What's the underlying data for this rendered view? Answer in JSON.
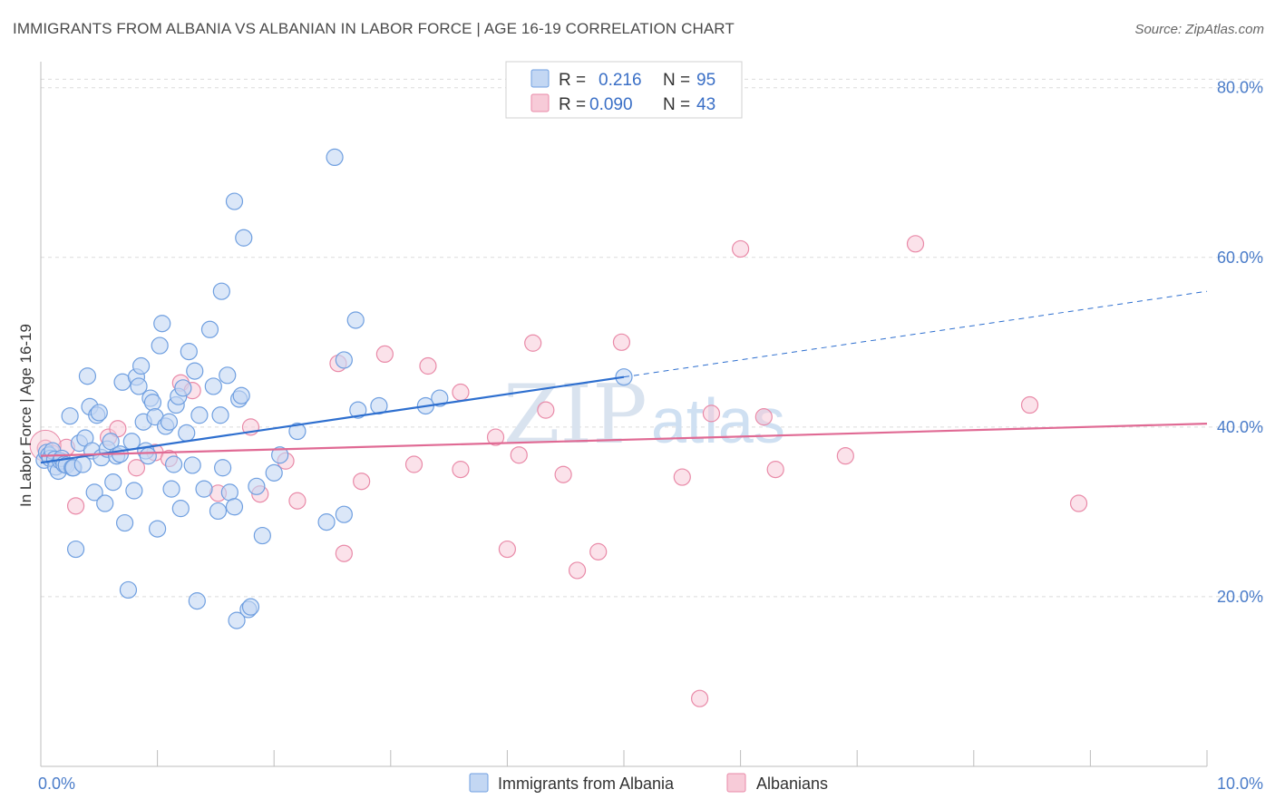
{
  "title": "IMMIGRANTS FROM ALBANIA VS ALBANIAN IN LABOR FORCE | AGE 16-19 CORRELATION CHART",
  "source": "Source: ZipAtlas.com",
  "watermark": {
    "zip": "ZIP",
    "atlas": "atlas"
  },
  "colors": {
    "blue": "#6f9fe0",
    "blue_fill": "#c3d7f3",
    "blue_line": "#2e6fcf",
    "pink": "#e98aa8",
    "pink_fill": "#f7cbd8",
    "pink_line": "#e06a94",
    "tick": "#4a7cc9"
  },
  "legend": {
    "rows": [
      {
        "r_label": "R = ",
        "r_value": "0.216",
        "n_label": "N = ",
        "n_value": "95"
      },
      {
        "r_label": "R = ",
        "r_value": "0.090",
        "n_label": "N = ",
        "n_value": "43"
      }
    ]
  },
  "bottom_legend": [
    "Immigrants from Albania",
    "Albanians"
  ],
  "chart_data": {
    "type": "scatter",
    "title": "IMMIGRANTS FROM ALBANIA VS ALBANIAN IN LABOR FORCE | AGE 16-19 CORRELATION CHART",
    "xlabel": "",
    "ylabel": "In Labor Force | Age 16-19",
    "xlim": [
      0,
      10
    ],
    "ylim": [
      0,
      82
    ],
    "x_tick_labels": [
      "0.0%",
      "10.0%"
    ],
    "y_ticks": [
      20,
      40,
      60,
      80
    ],
    "y_tick_labels": [
      "20.0%",
      "40.0%",
      "60.0%",
      "80.0%"
    ],
    "grid": true,
    "legend_position": "top-center",
    "series": [
      {
        "name": "Immigrants from Albania",
        "R": 0.216,
        "N": 95,
        "trend": {
          "x0": 0,
          "y0": 35.8,
          "x1": 5.0,
          "y1": 45.9,
          "dash_x1": 10.0,
          "dash_y1": 56.0
        },
        "points": [
          [
            0.03,
            36.1
          ],
          [
            0.05,
            37.0
          ],
          [
            0.07,
            36.7
          ],
          [
            0.08,
            36.3
          ],
          [
            0.1,
            37.2
          ],
          [
            0.12,
            36.2
          ],
          [
            0.13,
            35.3
          ],
          [
            0.15,
            34.8
          ],
          [
            0.17,
            36.0
          ],
          [
            0.18,
            36.3
          ],
          [
            0.2,
            35.6
          ],
          [
            0.22,
            35.5
          ],
          [
            0.25,
            41.3
          ],
          [
            0.27,
            35.2
          ],
          [
            0.28,
            35.2
          ],
          [
            0.3,
            25.6
          ],
          [
            0.33,
            38.1
          ],
          [
            0.36,
            35.6
          ],
          [
            0.38,
            38.7
          ],
          [
            0.4,
            46.0
          ],
          [
            0.42,
            42.4
          ],
          [
            0.44,
            37.2
          ],
          [
            0.46,
            32.3
          ],
          [
            0.48,
            41.4
          ],
          [
            0.5,
            41.7
          ],
          [
            0.52,
            36.4
          ],
          [
            0.55,
            31.0
          ],
          [
            0.57,
            37.4
          ],
          [
            0.6,
            38.3
          ],
          [
            0.62,
            33.5
          ],
          [
            0.65,
            36.6
          ],
          [
            0.68,
            36.8
          ],
          [
            0.7,
            45.3
          ],
          [
            0.72,
            28.7
          ],
          [
            0.75,
            20.8
          ],
          [
            0.78,
            38.3
          ],
          [
            0.8,
            32.5
          ],
          [
            0.82,
            45.9
          ],
          [
            0.84,
            44.8
          ],
          [
            0.86,
            47.2
          ],
          [
            0.88,
            40.6
          ],
          [
            0.9,
            37.2
          ],
          [
            0.92,
            36.6
          ],
          [
            0.94,
            43.4
          ],
          [
            0.96,
            42.9
          ],
          [
            0.98,
            41.2
          ],
          [
            1.0,
            28.0
          ],
          [
            1.02,
            49.6
          ],
          [
            1.04,
            52.2
          ],
          [
            1.07,
            40.1
          ],
          [
            1.1,
            40.6
          ],
          [
            1.12,
            32.7
          ],
          [
            1.14,
            35.6
          ],
          [
            1.16,
            42.6
          ],
          [
            1.18,
            43.6
          ],
          [
            1.2,
            30.4
          ],
          [
            1.22,
            44.6
          ],
          [
            1.25,
            39.3
          ],
          [
            1.27,
            48.9
          ],
          [
            1.3,
            35.5
          ],
          [
            1.32,
            46.6
          ],
          [
            1.34,
            19.5
          ],
          [
            1.36,
            41.4
          ],
          [
            1.4,
            32.7
          ],
          [
            1.45,
            51.5
          ],
          [
            1.48,
            44.8
          ],
          [
            1.52,
            30.1
          ],
          [
            1.54,
            41.4
          ],
          [
            1.56,
            35.2
          ],
          [
            1.6,
            46.1
          ],
          [
            1.62,
            32.3
          ],
          [
            1.66,
            30.6
          ],
          [
            1.7,
            43.3
          ],
          [
            1.72,
            43.7
          ],
          [
            1.78,
            18.5
          ],
          [
            1.8,
            18.8
          ],
          [
            1.85,
            33.0
          ],
          [
            1.9,
            27.2
          ],
          [
            2.0,
            34.6
          ],
          [
            2.05,
            36.7
          ],
          [
            2.2,
            39.5
          ],
          [
            2.45,
            28.8
          ],
          [
            2.6,
            47.9
          ],
          [
            2.7,
            52.6
          ],
          [
            2.72,
            42.0
          ],
          [
            2.9,
            42.5
          ],
          [
            3.3,
            42.5
          ],
          [
            3.42,
            43.4
          ],
          [
            5.0,
            45.9
          ],
          [
            1.55,
            56.0
          ],
          [
            2.52,
            71.8
          ],
          [
            1.66,
            66.6
          ],
          [
            2.6,
            29.7
          ],
          [
            1.74,
            62.3
          ],
          [
            1.68,
            17.2
          ]
        ]
      },
      {
        "name": "Albanians",
        "R": 0.09,
        "N": 43,
        "trend": {
          "x0": 0,
          "y0": 36.6,
          "x1": 10.0,
          "y1": 40.4
        },
        "points": [
          [
            0.04,
            37.5
          ],
          [
            0.1,
            36.9
          ],
          [
            0.22,
            37.6
          ],
          [
            0.3,
            30.7
          ],
          [
            0.58,
            38.8
          ],
          [
            0.66,
            39.8
          ],
          [
            0.82,
            35.2
          ],
          [
            0.98,
            37.0
          ],
          [
            1.1,
            36.3
          ],
          [
            1.2,
            45.2
          ],
          [
            1.3,
            44.3
          ],
          [
            1.52,
            32.2
          ],
          [
            1.8,
            40.0
          ],
          [
            1.88,
            32.1
          ],
          [
            2.1,
            36.0
          ],
          [
            2.2,
            31.3
          ],
          [
            2.55,
            47.5
          ],
          [
            2.6,
            25.1
          ],
          [
            2.75,
            33.6
          ],
          [
            2.95,
            48.6
          ],
          [
            3.2,
            35.6
          ],
          [
            3.32,
            47.2
          ],
          [
            3.6,
            35.0
          ],
          [
            3.6,
            44.1
          ],
          [
            3.9,
            38.8
          ],
          [
            4.0,
            25.6
          ],
          [
            4.1,
            36.7
          ],
          [
            4.22,
            49.9
          ],
          [
            4.33,
            42.0
          ],
          [
            4.48,
            34.4
          ],
          [
            4.6,
            23.1
          ],
          [
            4.78,
            25.3
          ],
          [
            4.98,
            50.0
          ],
          [
            5.5,
            34.1
          ],
          [
            5.65,
            8.0
          ],
          [
            5.75,
            41.6
          ],
          [
            6.0,
            61.0
          ],
          [
            6.2,
            41.2
          ],
          [
            6.3,
            35.0
          ],
          [
            6.9,
            36.6
          ],
          [
            7.5,
            61.6
          ],
          [
            8.48,
            42.6
          ],
          [
            8.9,
            31.0
          ]
        ]
      }
    ]
  }
}
